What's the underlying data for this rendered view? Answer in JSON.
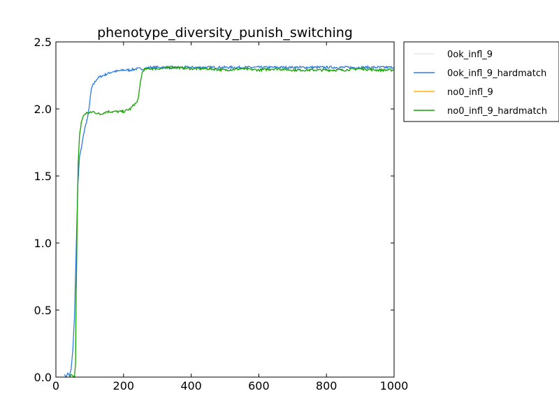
{
  "chart_data": {
    "type": "line",
    "title": "phenotype_diversity_punish_switching",
    "xlabel": "",
    "ylabel": "",
    "xlim": [
      0,
      1000
    ],
    "ylim": [
      0,
      2.5
    ],
    "x_ticks": [
      "0",
      "200",
      "400",
      "600",
      "800",
      "1000"
    ],
    "y_ticks": [
      "0.0",
      "0.5",
      "1.0",
      "1.5",
      "2.0",
      "2.5"
    ],
    "grid": false,
    "legend_position": "outside-top-right",
    "series": [
      {
        "name": "0ok_infl_9",
        "color": "#e8e8e8",
        "points": []
      },
      {
        "name": "0ok_infl_9_hardmatch",
        "color": "#2a7be4",
        "points": [
          [
            25,
            0.02
          ],
          [
            30,
            0.0
          ],
          [
            35,
            0.03
          ],
          [
            40,
            0.01
          ],
          [
            45,
            0.06
          ],
          [
            50,
            0.2
          ],
          [
            55,
            0.45
          ],
          [
            60,
            0.95
          ],
          [
            65,
            1.45
          ],
          [
            70,
            1.65
          ],
          [
            75,
            1.7
          ],
          [
            80,
            1.78
          ],
          [
            85,
            1.85
          ],
          [
            90,
            1.9
          ],
          [
            95,
            1.95
          ],
          [
            100,
            2.05
          ],
          [
            105,
            2.15
          ],
          [
            110,
            2.18
          ],
          [
            115,
            2.2
          ],
          [
            120,
            2.22
          ],
          [
            130,
            2.24
          ],
          [
            140,
            2.25
          ],
          [
            150,
            2.26
          ],
          [
            160,
            2.27
          ],
          [
            170,
            2.28
          ],
          [
            180,
            2.28
          ],
          [
            200,
            2.29
          ],
          [
            220,
            2.29
          ],
          [
            240,
            2.3
          ],
          [
            260,
            2.3
          ],
          [
            280,
            2.31
          ],
          [
            300,
            2.31
          ],
          [
            350,
            2.31
          ],
          [
            400,
            2.31
          ],
          [
            450,
            2.31
          ],
          [
            500,
            2.31
          ],
          [
            600,
            2.31
          ],
          [
            700,
            2.31
          ],
          [
            800,
            2.31
          ],
          [
            900,
            2.31
          ],
          [
            1000,
            2.31
          ]
        ]
      },
      {
        "name": "no0_infl_9",
        "color": "#ffb000",
        "points": []
      },
      {
        "name": "no0_infl_9_hardmatch",
        "color": "#15a000",
        "points": [
          [
            40,
            0.0
          ],
          [
            45,
            0.02
          ],
          [
            50,
            0.01
          ],
          [
            55,
            0.0
          ],
          [
            58,
            0.1
          ],
          [
            60,
            0.6
          ],
          [
            63,
            1.2
          ],
          [
            66,
            1.6
          ],
          [
            70,
            1.8
          ],
          [
            75,
            1.9
          ],
          [
            80,
            1.94
          ],
          [
            85,
            1.96
          ],
          [
            90,
            1.97
          ],
          [
            100,
            1.97
          ],
          [
            110,
            1.98
          ],
          [
            120,
            1.97
          ],
          [
            130,
            1.96
          ],
          [
            140,
            1.97
          ],
          [
            150,
            1.98
          ],
          [
            160,
            1.98
          ],
          [
            170,
            1.98
          ],
          [
            180,
            1.98
          ],
          [
            190,
            1.98
          ],
          [
            200,
            1.98
          ],
          [
            210,
            1.99
          ],
          [
            220,
            2.0
          ],
          [
            230,
            2.03
          ],
          [
            240,
            2.05
          ],
          [
            245,
            2.1
          ],
          [
            250,
            2.2
          ],
          [
            255,
            2.27
          ],
          [
            260,
            2.29
          ],
          [
            270,
            2.3
          ],
          [
            280,
            2.3
          ],
          [
            300,
            2.3
          ],
          [
            350,
            2.31
          ],
          [
            400,
            2.3
          ],
          [
            450,
            2.3
          ],
          [
            500,
            2.29
          ],
          [
            550,
            2.3
          ],
          [
            600,
            2.29
          ],
          [
            650,
            2.3
          ],
          [
            700,
            2.29
          ],
          [
            750,
            2.29
          ],
          [
            800,
            2.29
          ],
          [
            850,
            2.29
          ],
          [
            900,
            2.3
          ],
          [
            950,
            2.29
          ],
          [
            1000,
            2.29
          ]
        ]
      }
    ]
  }
}
